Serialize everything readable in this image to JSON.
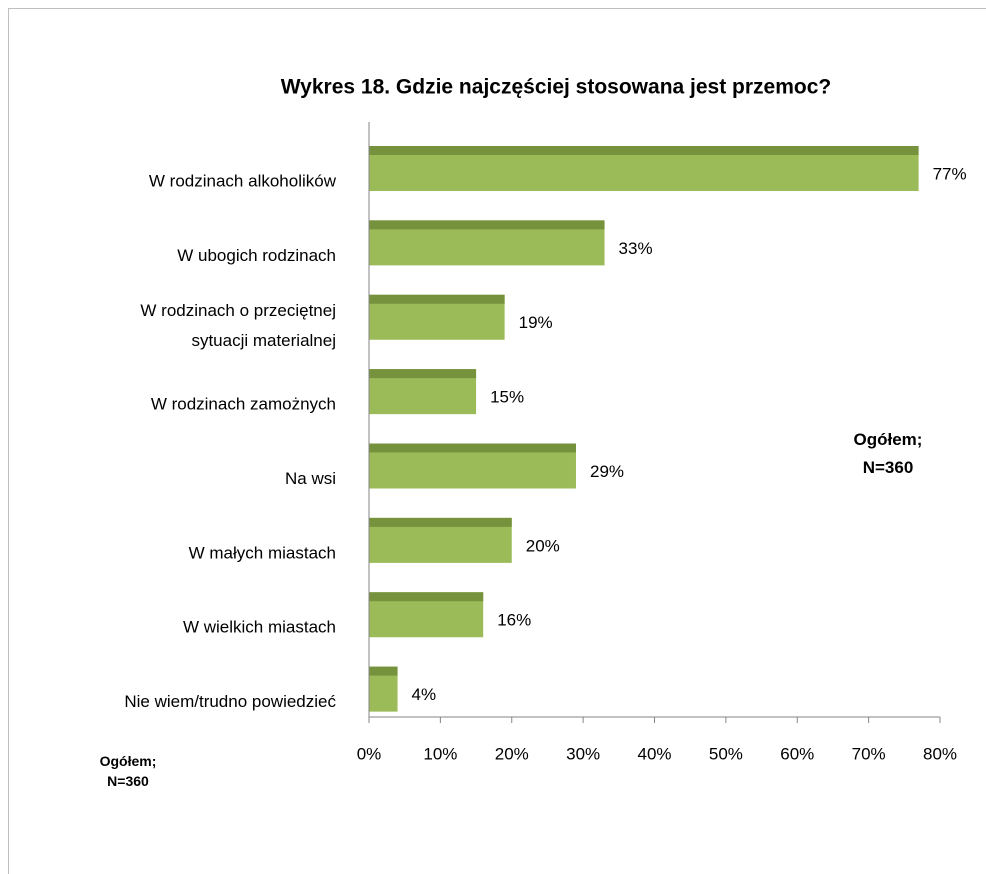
{
  "chart_data": {
    "type": "bar",
    "orientation": "horizontal",
    "title": "Wykres 18. Gdzie najczęściej stosowana jest przemoc?",
    "categories": [
      "W rodzinach alkoholików",
      "W ubogich rodzinach",
      "W rodzinach o przeciętnej\nsytuacji materialnej",
      "W rodzinach zamożnych",
      "Na wsi",
      "W małych miastach",
      "W wielkich miastach",
      "Nie wiem/trudno powiedzieć"
    ],
    "values": [
      77,
      33,
      19,
      15,
      29,
      20,
      16,
      4
    ],
    "value_labels": [
      "77%",
      "33%",
      "19%",
      "15%",
      "29%",
      "20%",
      "16%",
      "4%"
    ],
    "color": "#9bbb59",
    "xlim": [
      0,
      80
    ],
    "xticks": [
      {
        "value": 0,
        "label": "0%"
      },
      {
        "value": 10,
        "label": "10%"
      },
      {
        "value": 20,
        "label": "20%"
      },
      {
        "value": 30,
        "label": "30%"
      },
      {
        "value": 40,
        "label": "40%"
      },
      {
        "value": 50,
        "label": "50%"
      },
      {
        "value": 60,
        "label": "60%"
      },
      {
        "value": 70,
        "label": "70%"
      },
      {
        "value": 80,
        "label": "80%"
      }
    ],
    "annotations": [
      "Ogółem;\nN=360",
      "Ogółem;\nN=360"
    ]
  }
}
